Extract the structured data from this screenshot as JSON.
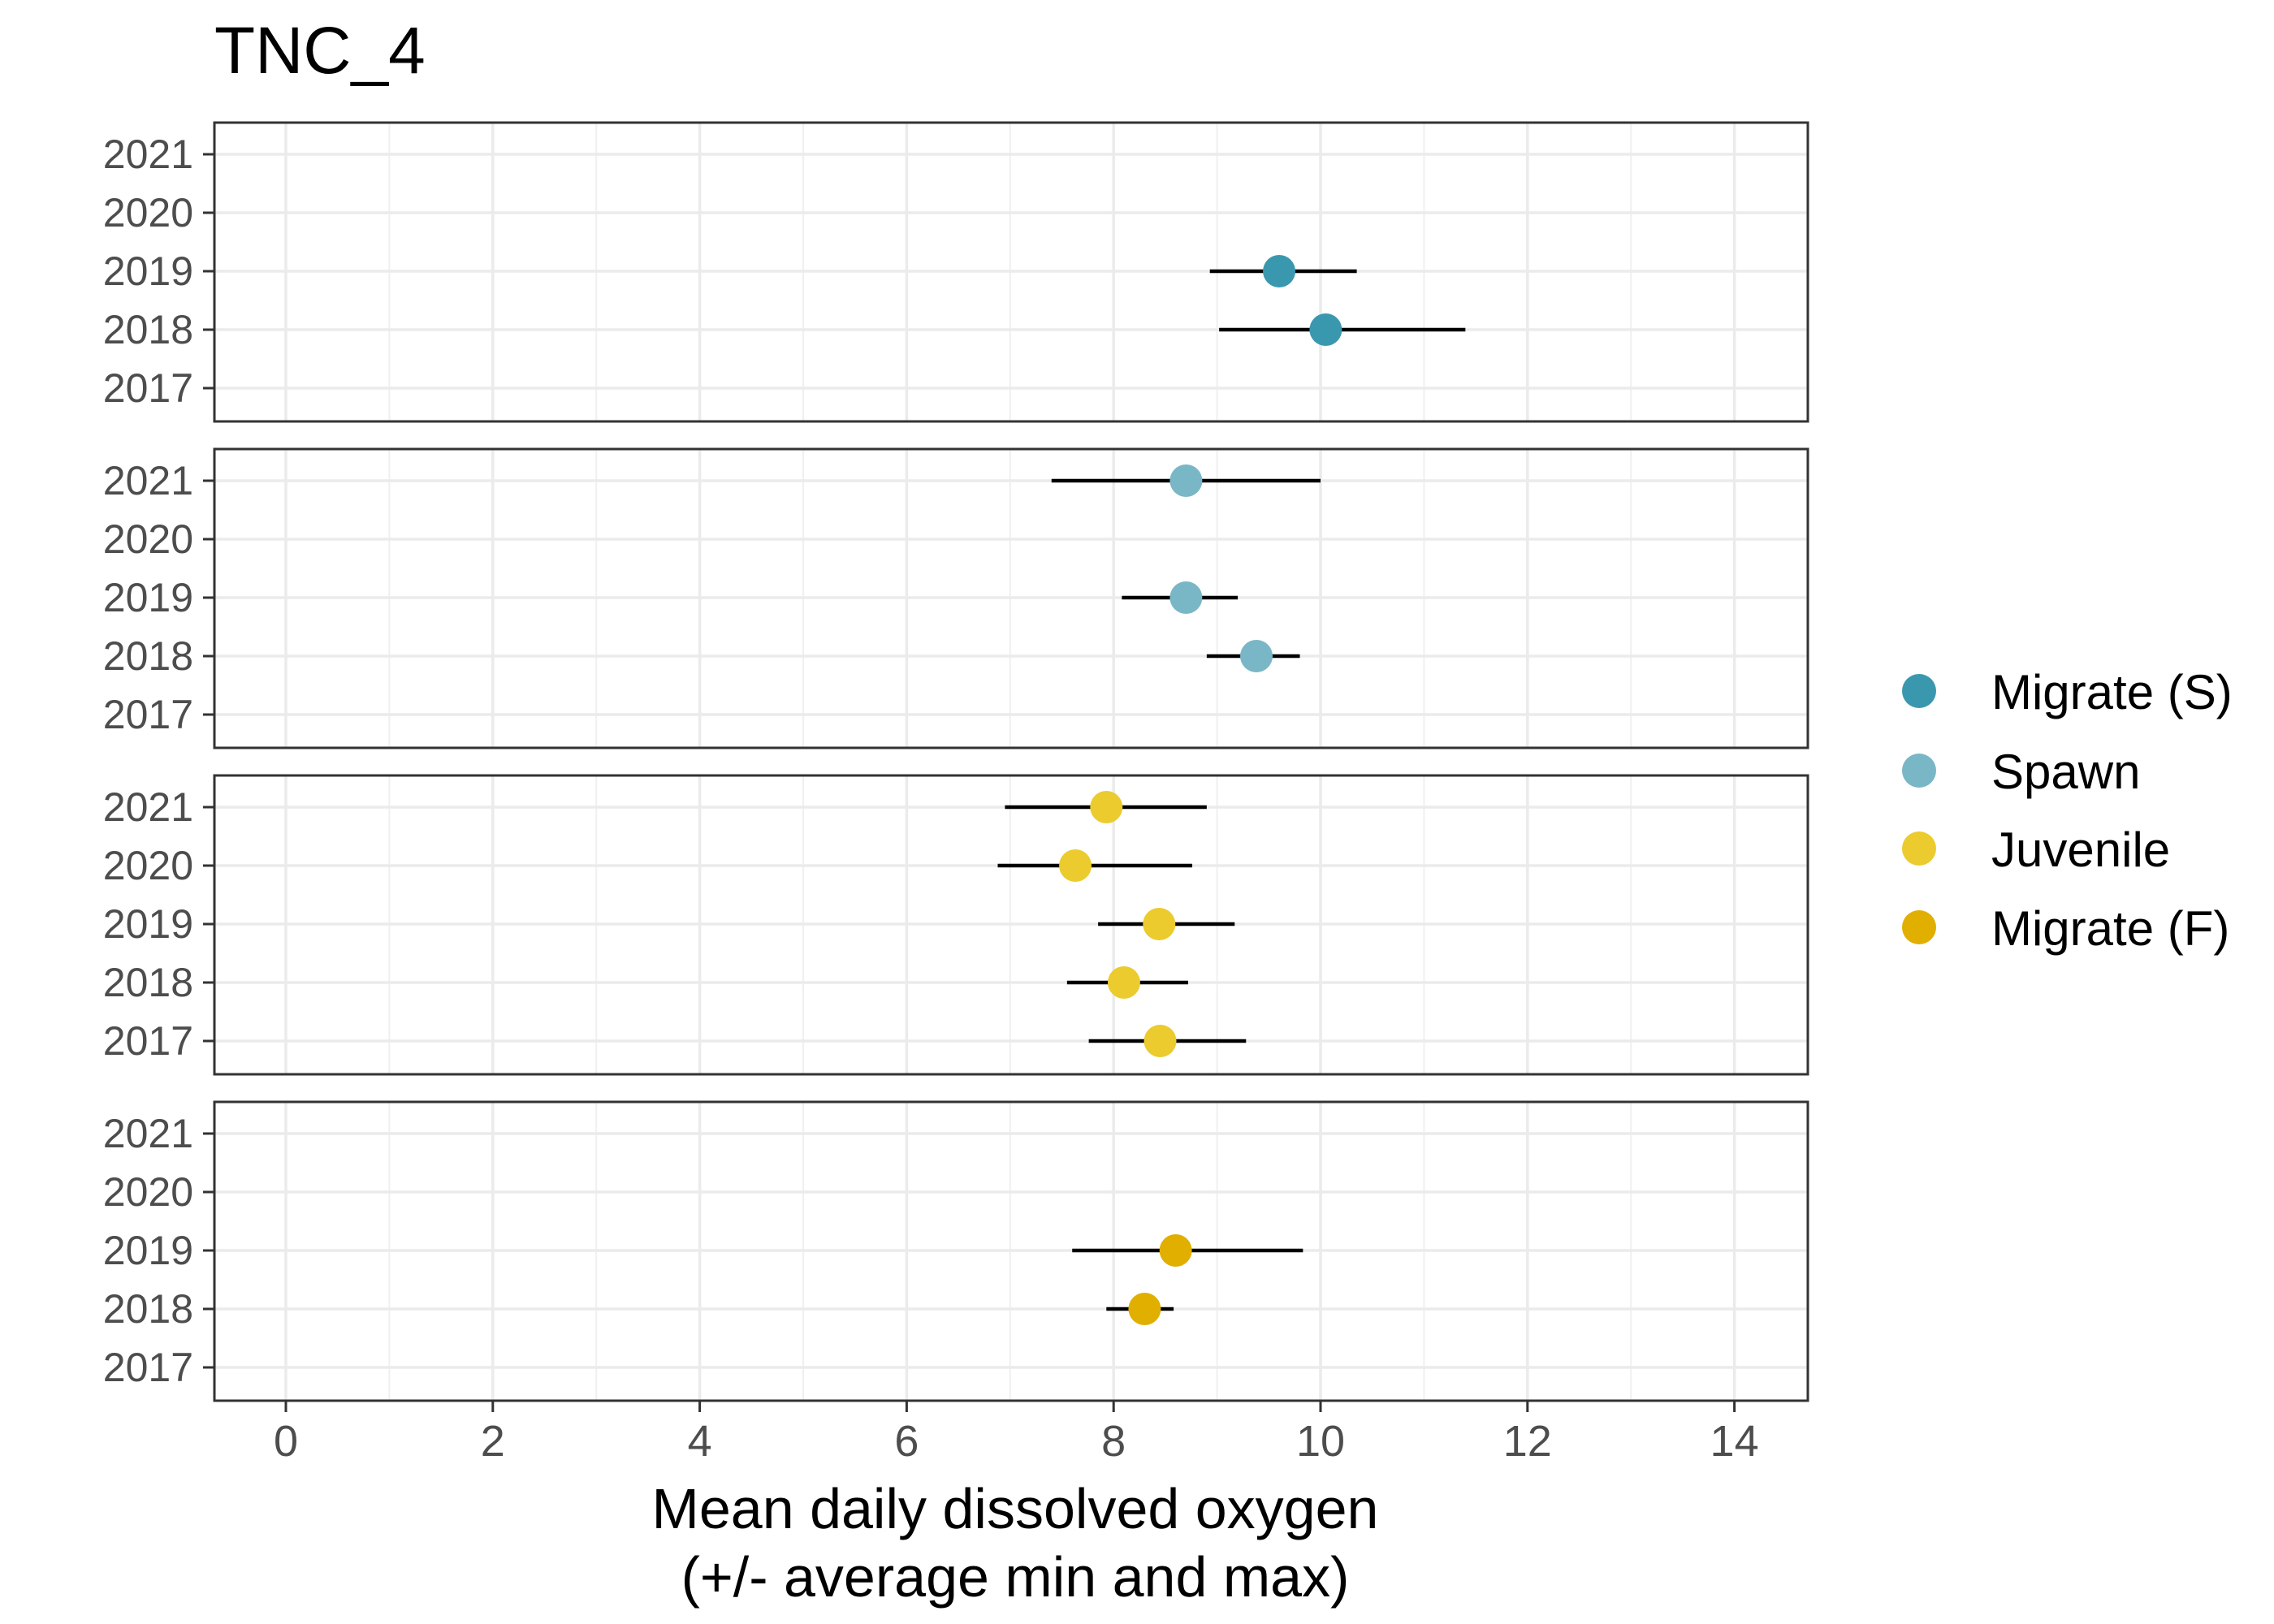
{
  "chart_data": {
    "type": "scatter",
    "title": "TNC_4",
    "xlabel_line1": "Mean daily dissolved oxygen",
    "xlabel_line2": "(+/- average min and max)",
    "ylabel": "",
    "xlim": [
      -0.68,
      14.7
    ],
    "x_ticks": [
      0,
      2,
      4,
      6,
      8,
      10,
      12,
      14
    ],
    "y_categories": [
      "2017",
      "2018",
      "2019",
      "2020",
      "2021"
    ],
    "grid": true,
    "legend_position": "right",
    "series": [
      {
        "name": "Migrate (S)",
        "color": "#3a98ae",
        "points": [
          {
            "year": "2019",
            "mean": 9.6,
            "min": 8.93,
            "max": 10.35
          },
          {
            "year": "2018",
            "mean": 10.05,
            "min": 9.02,
            "max": 11.4
          }
        ]
      },
      {
        "name": "Spawn",
        "color": "#79b7c6",
        "points": [
          {
            "year": "2021",
            "mean": 8.7,
            "min": 7.4,
            "max": 10.0
          },
          {
            "year": "2019",
            "mean": 8.7,
            "min": 8.08,
            "max": 9.2
          },
          {
            "year": "2018",
            "mean": 9.38,
            "min": 8.9,
            "max": 9.8
          }
        ]
      },
      {
        "name": "Juvenile",
        "color": "#ebcb2e",
        "points": [
          {
            "year": "2021",
            "mean": 7.93,
            "min": 6.95,
            "max": 8.9
          },
          {
            "year": "2020",
            "mean": 7.63,
            "min": 6.88,
            "max": 8.76
          },
          {
            "year": "2019",
            "mean": 8.44,
            "min": 7.85,
            "max": 9.17
          },
          {
            "year": "2018",
            "mean": 8.1,
            "min": 7.55,
            "max": 8.72
          },
          {
            "year": "2017",
            "mean": 8.45,
            "min": 7.76,
            "max": 9.28
          }
        ]
      },
      {
        "name": "Migrate (F)",
        "color": "#e1af00",
        "points": [
          {
            "year": "2019",
            "mean": 8.6,
            "min": 7.6,
            "max": 9.83
          },
          {
            "year": "2018",
            "mean": 8.3,
            "min": 7.93,
            "max": 8.58
          }
        ]
      }
    ]
  }
}
